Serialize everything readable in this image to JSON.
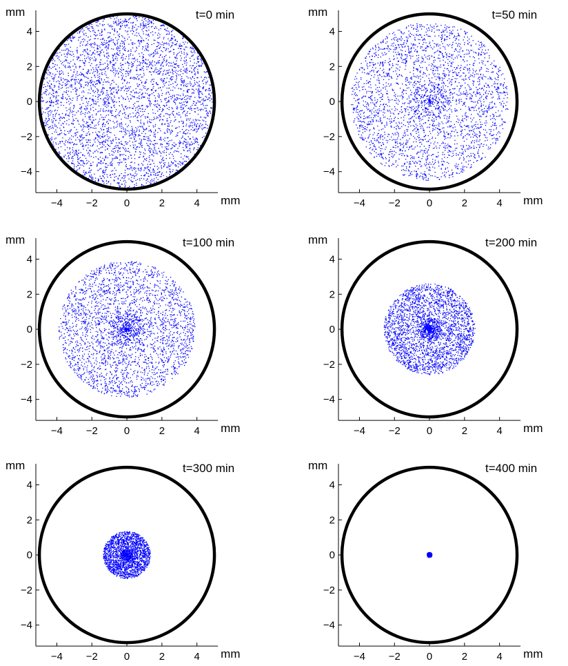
{
  "chart_data": [
    {
      "type": "scatter",
      "title": "t=0 min",
      "xlabel": "mm",
      "ylabel": "mm",
      "xlim": [
        -5.2,
        5.2
      ],
      "ylim": [
        -5.2,
        5.2
      ],
      "xticks": [
        -4,
        -2,
        0,
        2,
        4
      ],
      "yticks": [
        -4,
        -2,
        0,
        2,
        4
      ],
      "xtick_labels": [
        "−4",
        "−2",
        "0",
        "2",
        "4"
      ],
      "ytick_labels": [
        "−4",
        "−2",
        "0",
        "2",
        "4"
      ],
      "boundary_circle": {
        "center": [
          0,
          0
        ],
        "radius": 5,
        "color": "#000000"
      },
      "points": {
        "color": "#0000ff",
        "count": 4000,
        "spread_radius": 5.0,
        "center_concentration": "none"
      },
      "grid": false,
      "legend": "none"
    },
    {
      "type": "scatter",
      "title": "t=50 min",
      "xlabel": "mm",
      "ylabel": "mm",
      "xlim": [
        -5.2,
        5.2
      ],
      "ylim": [
        -5.2,
        5.2
      ],
      "xticks": [
        -4,
        -2,
        0,
        2,
        4
      ],
      "yticks": [
        -4,
        -2,
        0,
        2,
        4
      ],
      "xtick_labels": [
        "−4",
        "−2",
        "0",
        "2",
        "4"
      ],
      "ytick_labels": [
        "−4",
        "−2",
        "0",
        "2",
        "4"
      ],
      "boundary_circle": {
        "center": [
          0,
          0
        ],
        "radius": 5,
        "color": "#000000"
      },
      "points": {
        "color": "#0000ff",
        "count": 3000,
        "spread_radius": 4.5,
        "center_concentration": "slight"
      },
      "grid": false,
      "legend": "none"
    },
    {
      "type": "scatter",
      "title": "t=100 min",
      "xlabel": "mm",
      "ylabel": "mm",
      "xlim": [
        -5.2,
        5.2
      ],
      "ylim": [
        -5.2,
        5.2
      ],
      "xticks": [
        -4,
        -2,
        0,
        2,
        4
      ],
      "yticks": [
        -4,
        -2,
        0,
        2,
        4
      ],
      "xtick_labels": [
        "−4",
        "−2",
        "0",
        "2",
        "4"
      ],
      "ytick_labels": [
        "−4",
        "−2",
        "0",
        "2",
        "4"
      ],
      "boundary_circle": {
        "center": [
          0,
          0
        ],
        "radius": 5,
        "color": "#000000"
      },
      "points": {
        "color": "#0000ff",
        "count": 3000,
        "spread_radius": 3.9,
        "center_concentration": "moderate"
      },
      "grid": false,
      "legend": "none"
    },
    {
      "type": "scatter",
      "title": "t=200 min",
      "xlabel": "mm",
      "ylabel": "mm",
      "xlim": [
        -5.2,
        5.2
      ],
      "ylim": [
        -5.2,
        5.2
      ],
      "xticks": [
        -4,
        -2,
        0,
        2,
        4
      ],
      "yticks": [
        -4,
        -2,
        0,
        2,
        4
      ],
      "xtick_labels": [
        "−4",
        "−2",
        "0",
        "2",
        "4"
      ],
      "ytick_labels": [
        "−4",
        "−2",
        "0",
        "2",
        "4"
      ],
      "boundary_circle": {
        "center": [
          0,
          0
        ],
        "radius": 5,
        "color": "#000000"
      },
      "points": {
        "color": "#0000ff",
        "count": 3000,
        "spread_radius": 2.6,
        "center_concentration": "moderate"
      },
      "grid": false,
      "legend": "none"
    },
    {
      "type": "scatter",
      "title": "t=300 min",
      "xlabel": "mm",
      "ylabel": "mm",
      "xlim": [
        -5.2,
        5.2
      ],
      "ylim": [
        -5.2,
        5.2
      ],
      "xticks": [
        -4,
        -2,
        0,
        2,
        4
      ],
      "yticks": [
        -4,
        -2,
        0,
        2,
        4
      ],
      "xtick_labels": [
        "−4",
        "−2",
        "0",
        "2",
        "4"
      ],
      "ytick_labels": [
        "−4",
        "−2",
        "0",
        "2",
        "4"
      ],
      "boundary_circle": {
        "center": [
          0,
          0
        ],
        "radius": 5,
        "color": "#000000"
      },
      "points": {
        "color": "#0000ff",
        "count": 2200,
        "spread_radius": 1.35,
        "center_concentration": "moderate"
      },
      "grid": false,
      "legend": "none"
    },
    {
      "type": "scatter",
      "title": "t=400 min",
      "xlabel": "mm",
      "ylabel": "mm",
      "xlim": [
        -5.2,
        5.2
      ],
      "ylim": [
        -5.2,
        5.2
      ],
      "xticks": [
        -4,
        -2,
        0,
        2,
        4
      ],
      "yticks": [
        -4,
        -2,
        0,
        2,
        4
      ],
      "xtick_labels": [
        "−4",
        "−2",
        "0",
        "2",
        "4"
      ],
      "ytick_labels": [
        "−4",
        "−2",
        "0",
        "2",
        "4"
      ],
      "boundary_circle": {
        "center": [
          0,
          0
        ],
        "radius": 5,
        "color": "#000000"
      },
      "points": {
        "color": "#0000ff",
        "count": 400,
        "spread_radius": 0.15,
        "center_concentration": "high"
      },
      "grid": false,
      "legend": "none"
    }
  ]
}
